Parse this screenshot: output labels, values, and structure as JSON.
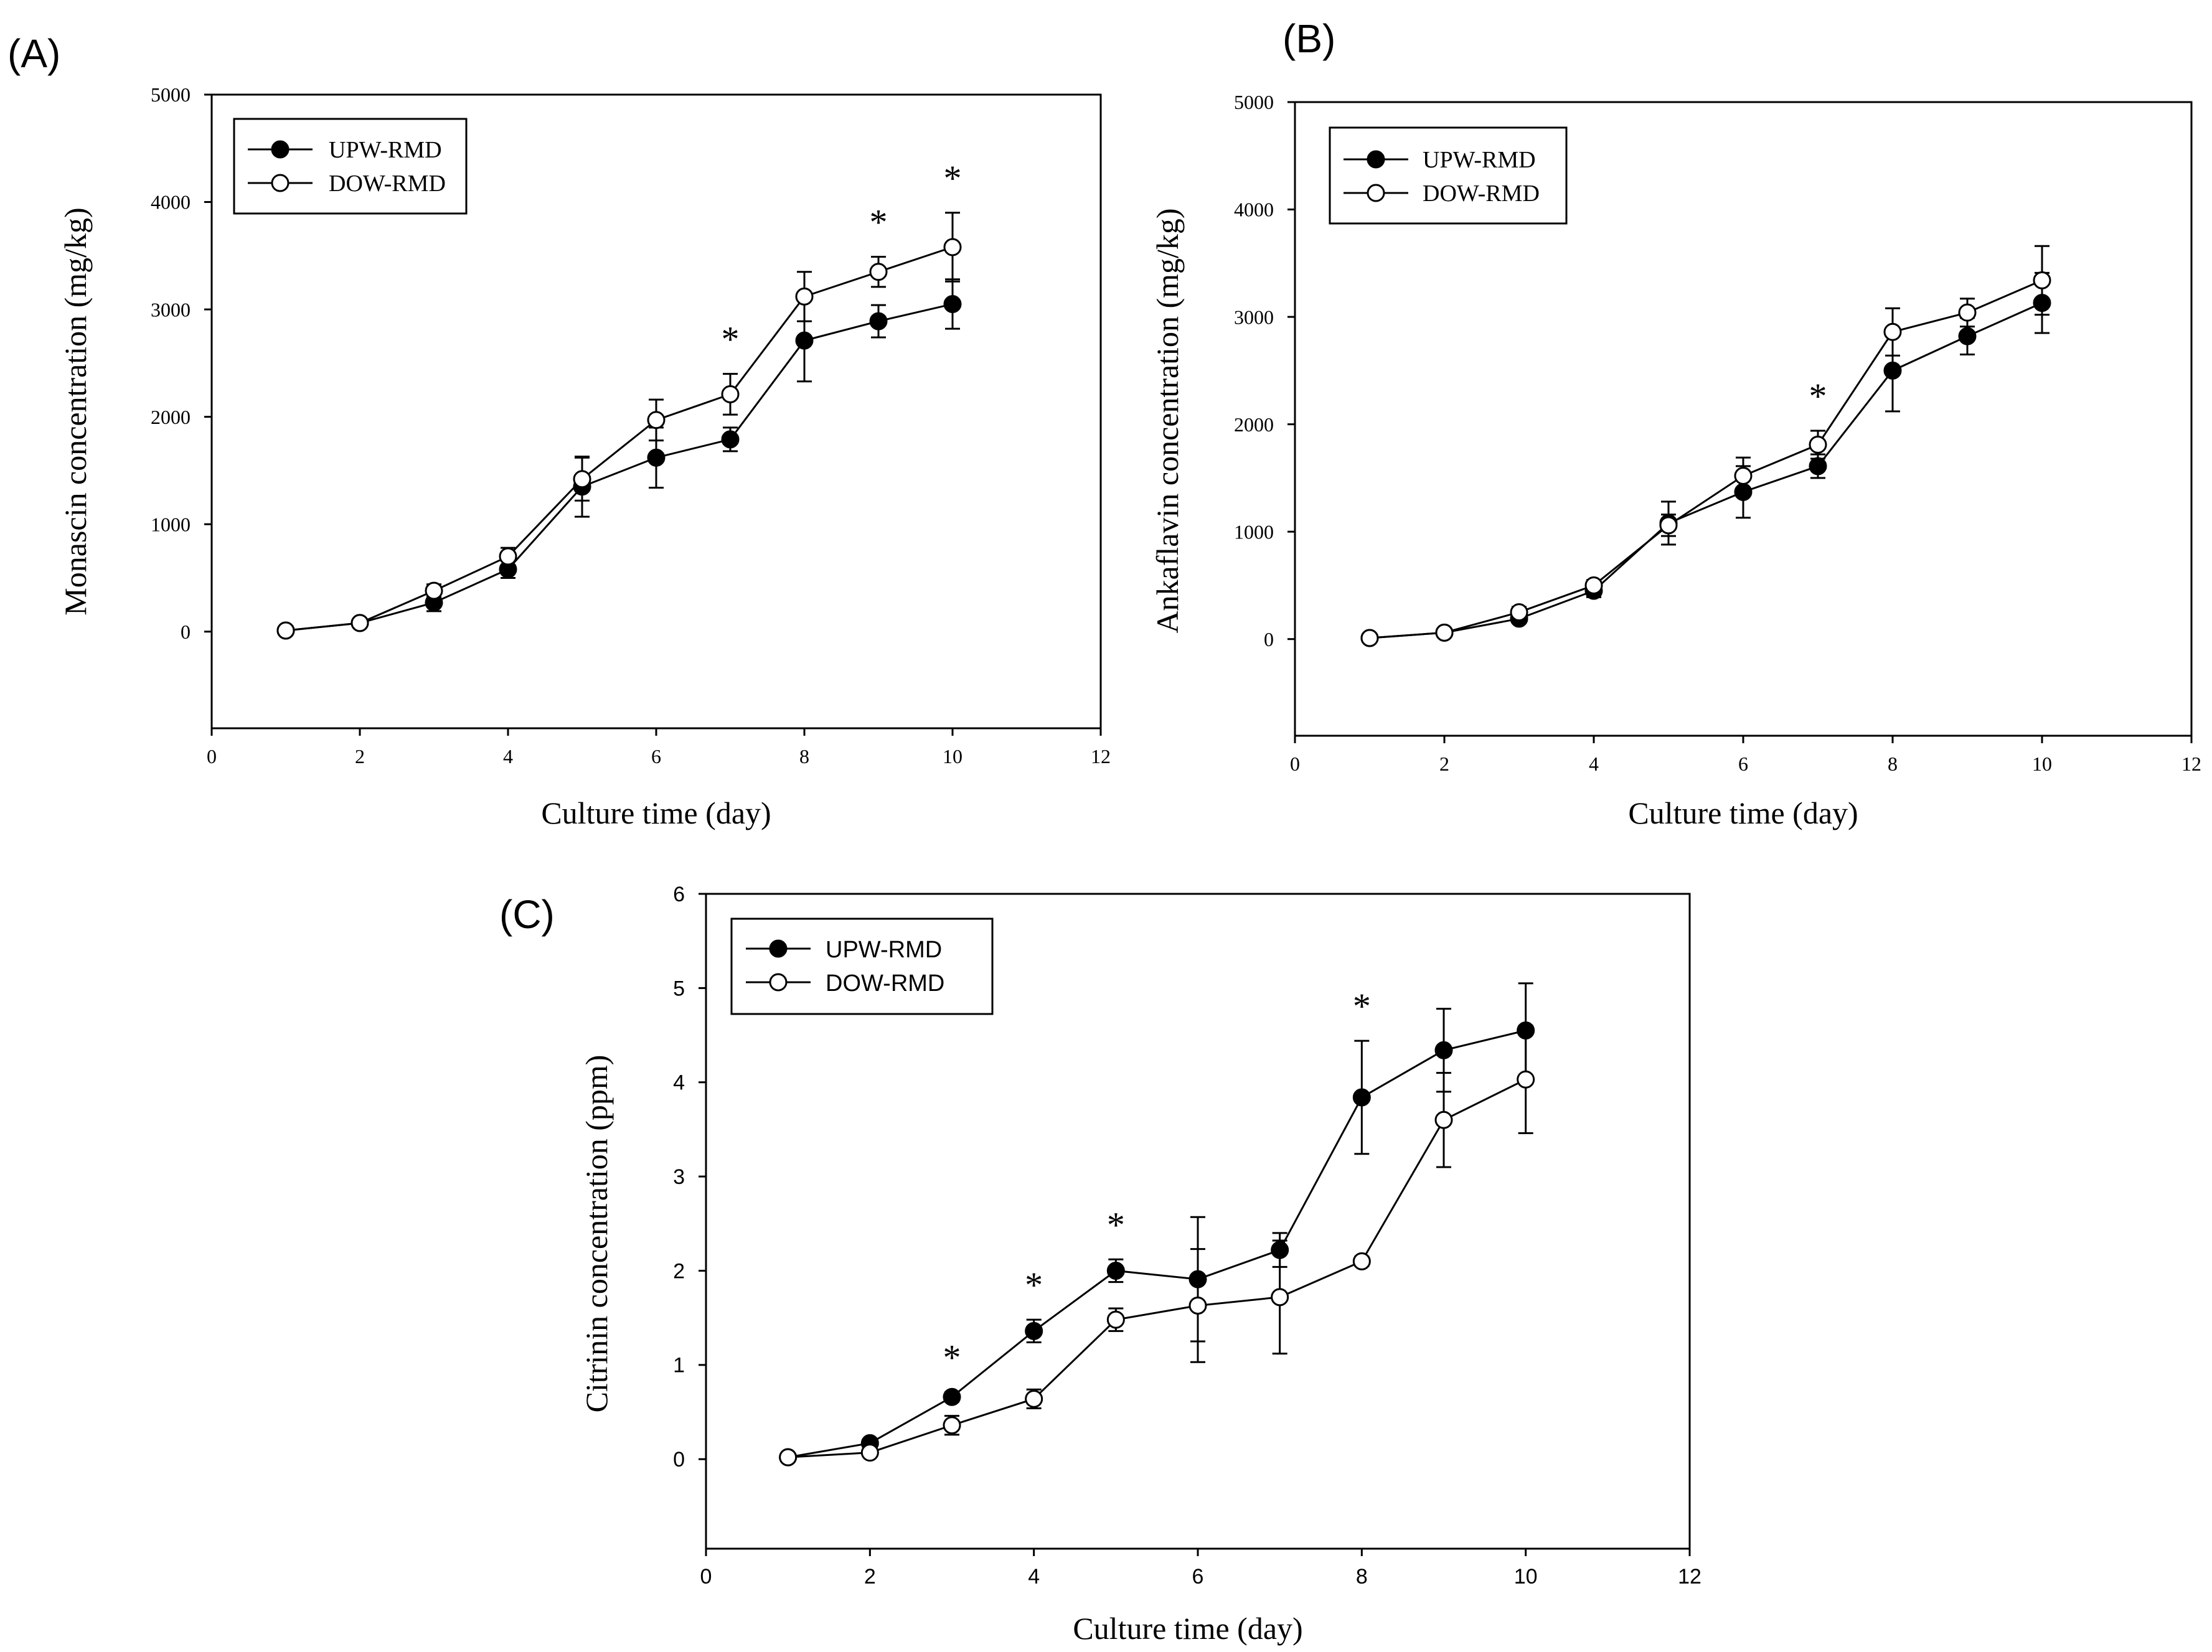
{
  "chart_data": [
    {
      "panel_label": "(A)",
      "type": "line",
      "xlabel": "Culture time (day)",
      "ylabel": "Monascin concentration (mg/kg)",
      "xlim": [
        0,
        12
      ],
      "ylim": [
        -900,
        5000
      ],
      "xticks": [
        "0",
        "2",
        "4",
        "6",
        "8",
        "10",
        "12"
      ],
      "yticks": [
        "0",
        "1000",
        "2000",
        "3000",
        "4000",
        "5000"
      ],
      "legend_position": "top-left",
      "x": [
        1,
        2,
        3,
        4,
        5,
        6,
        7,
        8,
        9,
        10
      ],
      "series": [
        {
          "name": "UPW-RMD",
          "marker": "filled-circle",
          "values": [
            10,
            80,
            270,
            580,
            1350,
            1620,
            1790,
            2710,
            2890,
            3050
          ],
          "errors": [
            20,
            30,
            80,
            80,
            280,
            280,
            110,
            380,
            150,
            230
          ]
        },
        {
          "name": "DOW-RMD",
          "marker": "open-circle",
          "values": [
            10,
            80,
            380,
            700,
            1420,
            1970,
            2210,
            3120,
            3350,
            3580
          ],
          "errors": [
            20,
            30,
            60,
            80,
            200,
            190,
            190,
            230,
            140,
            320
          ]
        }
      ],
      "annotations": [
        {
          "text": "*",
          "x": 7
        },
        {
          "text": "*",
          "x": 9
        },
        {
          "text": "*",
          "x": 10
        }
      ]
    },
    {
      "panel_label": "(B)",
      "type": "line",
      "xlabel": "Culture time (day)",
      "ylabel": "Ankaflavin concentration (mg/kg)",
      "xlim": [
        0,
        12
      ],
      "ylim": [
        -900,
        5000
      ],
      "xticks": [
        "0",
        "2",
        "4",
        "6",
        "8",
        "10",
        "12"
      ],
      "yticks": [
        "0",
        "1000",
        "2000",
        "3000",
        "4000",
        "5000"
      ],
      "legend_position": "top-left",
      "x": [
        1,
        2,
        3,
        4,
        5,
        6,
        7,
        8,
        9,
        10
      ],
      "series": [
        {
          "name": "UPW-RMD",
          "marker": "filled-circle",
          "values": [
            10,
            60,
            190,
            450,
            1080,
            1370,
            1610,
            2500,
            2820,
            3130
          ],
          "errors": [
            20,
            20,
            40,
            60,
            200,
            240,
            110,
            380,
            170,
            280
          ]
        },
        {
          "name": "DOW-RMD",
          "marker": "open-circle",
          "values": [
            10,
            60,
            250,
            500,
            1060,
            1520,
            1810,
            2860,
            3040,
            3340
          ],
          "errors": [
            20,
            20,
            50,
            50,
            100,
            170,
            130,
            220,
            130,
            320
          ]
        }
      ],
      "annotations": [
        {
          "text": "*",
          "x": 7
        }
      ]
    },
    {
      "panel_label": "(C)",
      "type": "line",
      "xlabel": "Culture time (day)",
      "ylabel": "Citrinin  concentration (ppm)",
      "xlim": [
        0,
        12
      ],
      "ylim": [
        -0.95,
        6
      ],
      "xticks": [
        "0",
        "2",
        "4",
        "6",
        "8",
        "10",
        "12"
      ],
      "yticks": [
        "0",
        "1",
        "2",
        "3",
        "4",
        "5",
        "6"
      ],
      "legend_position": "top-left",
      "x": [
        1,
        2,
        3,
        4,
        5,
        6,
        7,
        8,
        9,
        10
      ],
      "series": [
        {
          "name": "UPW-RMD",
          "marker": "filled-circle",
          "values": [
            0.02,
            0.17,
            0.66,
            1.36,
            2.0,
            1.91,
            2.22,
            3.84,
            4.34,
            4.55
          ],
          "errors": [
            0.02,
            0.03,
            0.05,
            0.12,
            0.12,
            0.66,
            0.18,
            0.6,
            0.44,
            0.5
          ]
        },
        {
          "name": "DOW-RMD",
          "marker": "open-circle",
          "values": [
            0.02,
            0.07,
            0.36,
            0.64,
            1.48,
            1.63,
            1.72,
            2.1,
            3.6,
            4.03
          ],
          "errors": [
            0.02,
            0.03,
            0.1,
            0.1,
            0.12,
            0.6,
            0.6,
            0.05,
            0.5,
            0.57
          ]
        }
      ],
      "annotations": [
        {
          "text": "*",
          "x": 3
        },
        {
          "text": "*",
          "x": 4
        },
        {
          "text": "*",
          "x": 5
        },
        {
          "text": "*",
          "x": 8
        }
      ]
    }
  ]
}
